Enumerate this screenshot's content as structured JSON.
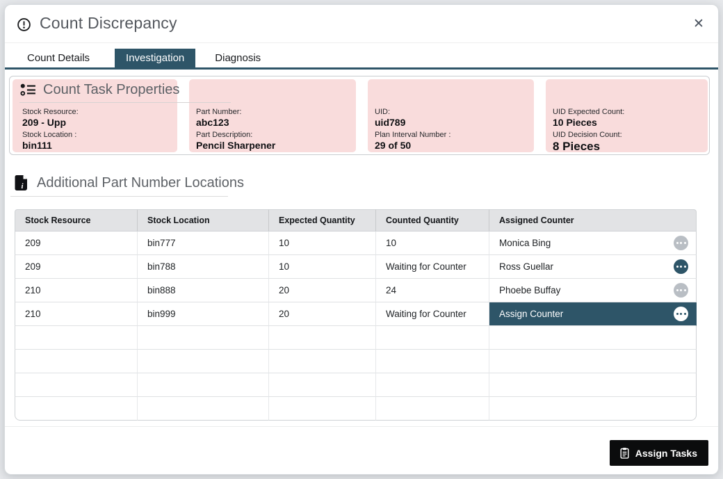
{
  "dialog": {
    "title": "Count Discrepancy",
    "close_glyph": "✕"
  },
  "tabs": [
    {
      "label": "Count Details",
      "active": false
    },
    {
      "label": "Investigation",
      "active": true
    },
    {
      "label": "Diagnosis",
      "active": false
    }
  ],
  "properties": {
    "section_title": "Count Task Properties",
    "columns": [
      {
        "fields": [
          {
            "label": "Stock Resource:",
            "value": "209 - Upp"
          },
          {
            "label": "Stock Location :",
            "value": "bin111"
          }
        ]
      },
      {
        "fields": [
          {
            "label": "Part Number:",
            "value": "abc123"
          },
          {
            "label": "Part Description:",
            "value": "Pencil Sharpener"
          }
        ]
      },
      {
        "fields": [
          {
            "label": "UID:",
            "value": "uid789"
          },
          {
            "label": "Plan Interval Number :",
            "value": "29 of 50"
          }
        ]
      },
      {
        "fields": [
          {
            "label": "UID Expected Count:",
            "value": "10 Pieces"
          },
          {
            "label": "UID Decision Count:",
            "value": "8 Pieces",
            "large": true
          }
        ]
      }
    ]
  },
  "additional": {
    "section_title": "Additional Part Number Locations",
    "table": {
      "headers": [
        "Stock Resource",
        "Stock Location",
        "Expected Quantity",
        "Counted Quantity",
        "Assigned Counter"
      ],
      "rows": [
        {
          "cells": [
            "209",
            "bin777",
            "10",
            "10",
            "Monica Bing"
          ],
          "menu": "gray",
          "highlight": false
        },
        {
          "cells": [
            "209",
            "bin788",
            "10",
            "Waiting for Counter",
            "Ross Guellar"
          ],
          "menu": "teal",
          "highlight": false
        },
        {
          "cells": [
            "210",
            "bin888",
            "20",
            "24",
            "Phoebe Buffay"
          ],
          "menu": "gray",
          "highlight": false
        },
        {
          "cells": [
            "210",
            "bin999",
            "20",
            "Waiting for Counter",
            "Assign Counter"
          ],
          "menu": "white",
          "highlight": true
        }
      ],
      "empty_rows": 4
    }
  },
  "footer": {
    "assign_button_label": "Assign Tasks"
  },
  "colors": {
    "accent_teal": "#2e5568",
    "highlight_pink": "#f9dcdc",
    "button_black": "#0b0c0d",
    "gray_menu": "#b9bec4",
    "table_header_gray": "#e2e3e5"
  }
}
